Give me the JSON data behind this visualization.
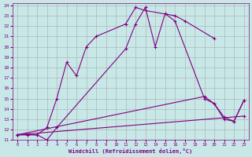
{
  "xlabel": "Windchill (Refroidissement éolien,°C)",
  "bg_color": "#c8e8e8",
  "line_color": "#800080",
  "grid_color": "#aaaaaa",
  "xlim": [
    -0.5,
    23.5
  ],
  "ylim": [
    11,
    24.2
  ],
  "xticks": [
    0,
    1,
    2,
    3,
    4,
    5,
    6,
    7,
    8,
    9,
    10,
    11,
    12,
    13,
    14,
    15,
    16,
    17,
    18,
    19,
    20,
    21,
    22,
    23
  ],
  "yticks": [
    11,
    12,
    13,
    14,
    15,
    16,
    17,
    18,
    19,
    20,
    21,
    22,
    23,
    24
  ],
  "series1_x": [
    0,
    1,
    2,
    3,
    4,
    5,
    6,
    7,
    8,
    11,
    12,
    13,
    16,
    17,
    20
  ],
  "series1_y": [
    11.5,
    11.5,
    11.5,
    12.2,
    15.0,
    18.5,
    17.2,
    20.0,
    21.0,
    22.2,
    23.8,
    23.5,
    23.0,
    22.5,
    20.8
  ],
  "series2_x": [
    0,
    1,
    2,
    3,
    4,
    11,
    12,
    13,
    14,
    15,
    16,
    19,
    20,
    21,
    22,
    23
  ],
  "series2_y": [
    11.5,
    11.5,
    11.5,
    11.0,
    12.2,
    19.8,
    22.2,
    23.8,
    20.0,
    23.2,
    22.5,
    15.0,
    14.5,
    13.0,
    12.8,
    14.8
  ],
  "series3_x": [
    0,
    19,
    20,
    21,
    22,
    23
  ],
  "series3_y": [
    11.5,
    15.2,
    14.5,
    13.2,
    12.8,
    14.8
  ],
  "series4_x": [
    0,
    23
  ],
  "series4_y": [
    11.5,
    13.3
  ]
}
